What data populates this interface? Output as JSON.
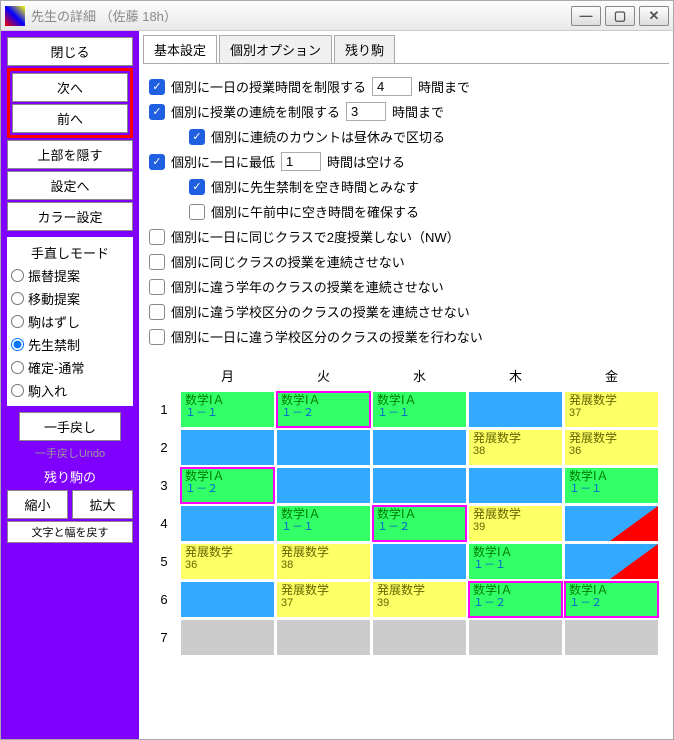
{
  "window": {
    "title": "先生の詳細 （佐藤 18h）"
  },
  "winbtns": {
    "min": "—",
    "max": "▢",
    "close": "✕"
  },
  "sidebar": {
    "close": "閉じる",
    "next": "次へ",
    "prev": "前へ",
    "hideTop": "上部を隠す",
    "toSettings": "設定へ",
    "colorSettings": "カラー設定",
    "modeLabel": "手直しモード",
    "r1": "振替提案",
    "r2": "移動提案",
    "r3": "駒はずし",
    "r4": "先生禁制",
    "r5": "確定-通常",
    "r6": "駒入れ",
    "undo": "一手戻し",
    "undoSmall": "一手戻しUndo",
    "remaining": "残り駒の",
    "shrink": "縮小",
    "expand": "拡大",
    "resetWidth": "文字と幅を戻す"
  },
  "tabs": {
    "t1": "基本設定",
    "t2": "個別オプション",
    "t3": "残り駒"
  },
  "opts": {
    "o1a": "個別に一日の授業時間を制限する",
    "o1v": "4",
    "o1b": "時間まで",
    "o2a": "個別に授業の連続を制限する",
    "o2v": "3",
    "o2b": "時間まで",
    "o3": "個別に連続のカウントは昼休みで区切る",
    "o4a": "個別に一日に最低",
    "o4v": "1",
    "o4b": "時間は空ける",
    "o5": "個別に先生禁制を空き時間とみなす",
    "o6": "個別に午前中に空き時間を確保する",
    "o7": "個別に一日に同じクラスで2度授業しない（NW）",
    "o8": "個別に同じクラスの授業を連続させない",
    "o9": "個別に違う学年のクラスの授業を連続させない",
    "o10": "個別に違う学校区分のクラスの授業を連続させない",
    "o11": "個別に一日に違う学校区分のクラスの授業を行わない"
  },
  "days": [
    "月",
    "火",
    "水",
    "木",
    "金"
  ],
  "periods": [
    "1",
    "2",
    "3",
    "4",
    "5",
    "6",
    "7"
  ],
  "colors": {
    "green": "#33ff66",
    "blue": "#33aaff",
    "yellow": "#ffff66",
    "gray": "#cccccc",
    "greenText": "#008000",
    "classText": "#0066cc"
  },
  "cells": {
    "r1": [
      {
        "bg": "green",
        "subj": "数学ⅠＡ",
        "cls": "１－１"
      },
      {
        "bg": "green",
        "subj": "数学ⅠＡ",
        "cls": "１－２",
        "pink": true
      },
      {
        "bg": "green",
        "subj": "数学ⅠＡ",
        "cls": "１－１"
      },
      {
        "bg": "blue"
      },
      {
        "bg": "yellow",
        "subj": "発展数学",
        "cls": "37"
      }
    ],
    "r2": [
      {
        "bg": "blue"
      },
      {
        "bg": "blue"
      },
      {
        "bg": "blue"
      },
      {
        "bg": "yellow",
        "subj": "発展数学",
        "cls": "38"
      },
      {
        "bg": "yellow",
        "subj": "発展数学",
        "cls": "36"
      }
    ],
    "r3": [
      {
        "bg": "green",
        "subj": "数学ⅠＡ",
        "cls": "１－２",
        "pink": true
      },
      {
        "bg": "blue"
      },
      {
        "bg": "blue"
      },
      {
        "bg": "blue"
      },
      {
        "bg": "green",
        "subj": "数学ⅠＡ",
        "cls": "１－１"
      }
    ],
    "r4": [
      {
        "bg": "blue"
      },
      {
        "bg": "green",
        "subj": "数学ⅠＡ",
        "cls": "１－１"
      },
      {
        "bg": "green",
        "subj": "数学ⅠＡ",
        "cls": "１－２",
        "pink": true
      },
      {
        "bg": "yellow",
        "subj": "発展数学",
        "cls": "39"
      },
      {
        "bg": "blue",
        "tri": true
      }
    ],
    "r5": [
      {
        "bg": "yellow",
        "subj": "発展数学",
        "cls": "36"
      },
      {
        "bg": "yellow",
        "subj": "発展数学",
        "cls": "38"
      },
      {
        "bg": "blue"
      },
      {
        "bg": "green",
        "subj": "数学ⅠＡ",
        "cls": "１－１"
      },
      {
        "bg": "blue",
        "tri": true
      }
    ],
    "r6": [
      {
        "bg": "blue"
      },
      {
        "bg": "yellow",
        "subj": "発展数学",
        "cls": "37"
      },
      {
        "bg": "yellow",
        "subj": "発展数学",
        "cls": "39"
      },
      {
        "bg": "green",
        "subj": "数学ⅠＡ",
        "cls": "１－２",
        "pink": true
      },
      {
        "bg": "green",
        "subj": "数学ⅠＡ",
        "cls": "１－２",
        "pink": true
      }
    ],
    "r7": [
      {
        "bg": "gray"
      },
      {
        "bg": "gray"
      },
      {
        "bg": "gray"
      },
      {
        "bg": "gray"
      },
      {
        "bg": "gray"
      }
    ]
  }
}
